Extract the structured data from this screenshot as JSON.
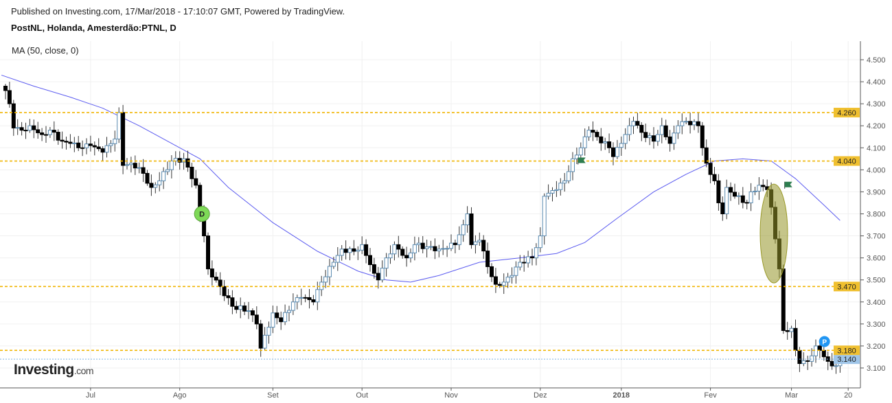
{
  "header": {
    "published": "Published on Investing.com, 17/Mar/2018 - 17:10:07 GMT, Powered by TradingView.",
    "symbol": "PostNL, Holanda, Amesterdão:PTNL, D"
  },
  "indicator": "MA (50, close, 0)",
  "logo": {
    "main": "Investing",
    "suffix": ".com"
  },
  "chart_data": {
    "type": "candlestick",
    "title": "PostNL, Holanda, Amesterdão:PTNL, D",
    "ylim": [
      3.0,
      4.58
    ],
    "xlim": [
      -1,
      211
    ],
    "y_ticks": [
      3.1,
      3.2,
      3.3,
      3.4,
      3.5,
      3.6,
      3.7,
      3.8,
      3.9,
      4.0,
      4.1,
      4.2,
      4.3,
      4.4,
      4.5
    ],
    "x_ticks": [
      {
        "day": 21,
        "label": "Jul"
      },
      {
        "day": 43,
        "label": "Ago"
      },
      {
        "day": 66,
        "label": "Set"
      },
      {
        "day": 88,
        "label": "Out"
      },
      {
        "day": 110,
        "label": "Nov"
      },
      {
        "day": 132,
        "label": "Dez"
      },
      {
        "day": 152,
        "label": "2018"
      },
      {
        "day": 174,
        "label": "Fev"
      },
      {
        "day": 194,
        "label": "Mar"
      },
      {
        "day": 208,
        "label": "20"
      }
    ],
    "close_keypoints": [
      [
        0,
        4.36
      ],
      [
        1,
        4.3
      ],
      [
        2,
        4.19
      ],
      [
        4,
        4.18
      ],
      [
        6,
        4.2
      ],
      [
        9,
        4.16
      ],
      [
        11,
        4.18
      ],
      [
        14,
        4.13
      ],
      [
        16,
        4.12
      ],
      [
        18,
        4.1
      ],
      [
        21,
        4.11
      ],
      [
        24,
        4.08
      ],
      [
        27,
        4.14
      ],
      [
        28,
        4.26
      ],
      [
        29,
        4.02
      ],
      [
        31,
        4.03
      ],
      [
        33,
        4.01
      ],
      [
        36,
        3.92
      ],
      [
        38,
        3.95
      ],
      [
        41,
        4.04
      ],
      [
        44,
        4.05
      ],
      [
        47,
        3.93
      ],
      [
        48,
        3.8
      ],
      [
        49,
        3.7
      ],
      [
        50,
        3.55
      ],
      [
        53,
        3.47
      ],
      [
        56,
        3.38
      ],
      [
        60,
        3.36
      ],
      [
        62,
        3.3
      ],
      [
        63,
        3.19
      ],
      [
        66,
        3.35
      ],
      [
        68,
        3.31
      ],
      [
        71,
        3.4
      ],
      [
        73,
        3.42
      ],
      [
        76,
        3.4
      ],
      [
        78,
        3.49
      ],
      [
        81,
        3.58
      ],
      [
        83,
        3.64
      ],
      [
        86,
        3.63
      ],
      [
        88,
        3.66
      ],
      [
        91,
        3.53
      ],
      [
        92,
        3.5
      ],
      [
        94,
        3.6
      ],
      [
        96,
        3.66
      ],
      [
        99,
        3.6
      ],
      [
        101,
        3.66
      ],
      [
        104,
        3.65
      ],
      [
        107,
        3.64
      ],
      [
        111,
        3.66
      ],
      [
        113,
        3.75
      ],
      [
        114,
        3.8
      ],
      [
        115,
        3.66
      ],
      [
        117,
        3.68
      ],
      [
        119,
        3.56
      ],
      [
        121,
        3.48
      ],
      [
        123,
        3.49
      ],
      [
        125,
        3.52
      ],
      [
        127,
        3.58
      ],
      [
        130,
        3.6
      ],
      [
        132,
        3.7
      ],
      [
        133,
        3.88
      ],
      [
        136,
        3.91
      ],
      [
        138,
        3.95
      ],
      [
        140,
        4.05
      ],
      [
        142,
        4.1
      ],
      [
        144,
        4.18
      ],
      [
        146,
        4.15
      ],
      [
        149,
        4.1
      ],
      [
        150,
        4.06
      ],
      [
        152,
        4.12
      ],
      [
        154,
        4.2
      ],
      [
        155,
        4.22
      ],
      [
        157,
        4.17
      ],
      [
        160,
        4.13
      ],
      [
        162,
        4.2
      ],
      [
        164,
        4.12
      ],
      [
        166,
        4.2
      ],
      [
        168,
        4.22
      ],
      [
        171,
        4.2
      ],
      [
        172,
        4.1
      ],
      [
        173,
        4.03
      ],
      [
        175,
        3.95
      ],
      [
        176,
        3.85
      ],
      [
        177,
        3.8
      ],
      [
        178,
        3.92
      ],
      [
        180,
        3.88
      ],
      [
        183,
        3.85
      ],
      [
        184,
        3.9
      ],
      [
        186,
        3.93
      ],
      [
        188,
        3.91
      ],
      [
        189,
        3.83
      ],
      [
        191,
        3.55
      ],
      [
        192,
        3.27
      ],
      [
        194,
        3.28
      ],
      [
        195,
        3.18
      ],
      [
        196,
        3.12
      ],
      [
        198,
        3.13
      ],
      [
        200,
        3.2
      ],
      [
        201,
        3.18
      ],
      [
        203,
        3.13
      ],
      [
        205,
        3.11
      ],
      [
        206,
        3.14
      ]
    ],
    "ma_series": {
      "name": "MA (50, close, 0)",
      "color": "#5b5bf0",
      "points": [
        [
          -1,
          4.43
        ],
        [
          7,
          4.38
        ],
        [
          16,
          4.33
        ],
        [
          24,
          4.28
        ],
        [
          33,
          4.2
        ],
        [
          41,
          4.12
        ],
        [
          48,
          4.05
        ],
        [
          55,
          3.92
        ],
        [
          66,
          3.76
        ],
        [
          77,
          3.63
        ],
        [
          87,
          3.54
        ],
        [
          94,
          3.5
        ],
        [
          100,
          3.49
        ],
        [
          107,
          3.52
        ],
        [
          117,
          3.58
        ],
        [
          127,
          3.6
        ],
        [
          136,
          3.62
        ],
        [
          143,
          3.67
        ],
        [
          151,
          3.78
        ],
        [
          160,
          3.9
        ],
        [
          168,
          3.98
        ],
        [
          175,
          4.04
        ],
        [
          182,
          4.05
        ],
        [
          189,
          4.04
        ],
        [
          195,
          3.96
        ],
        [
          202,
          3.84
        ],
        [
          206,
          3.77
        ]
      ]
    },
    "horizontal_lines": [
      {
        "value": 4.26,
        "label": "4.260",
        "color": "#f0b400"
      },
      {
        "value": 4.04,
        "label": "4.040",
        "color": "#f0b400"
      },
      {
        "value": 3.47,
        "label": "3.470",
        "color": "#f0b400"
      },
      {
        "value": 3.18,
        "label": "3.180",
        "color": "#f0b400"
      }
    ],
    "last_price": {
      "value": 3.14,
      "label": "3.140",
      "color": "#9fc5e8"
    },
    "annotations": [
      {
        "type": "marker",
        "text": "D",
        "day": 48.5,
        "value": 3.8,
        "color": "#7ed957"
      },
      {
        "type": "marker",
        "text": "P",
        "day": 203.5,
        "value": 3.22,
        "color": "#2196f3"
      },
      {
        "type": "flag",
        "day": 142,
        "value": 4.04,
        "color": "#2e7d4f"
      },
      {
        "type": "flag",
        "day": 193,
        "value": 3.93,
        "color": "#2e7d4f"
      },
      {
        "type": "ellipse",
        "day": 190,
        "value": 3.72,
        "color": "#9a9a2a"
      }
    ]
  }
}
